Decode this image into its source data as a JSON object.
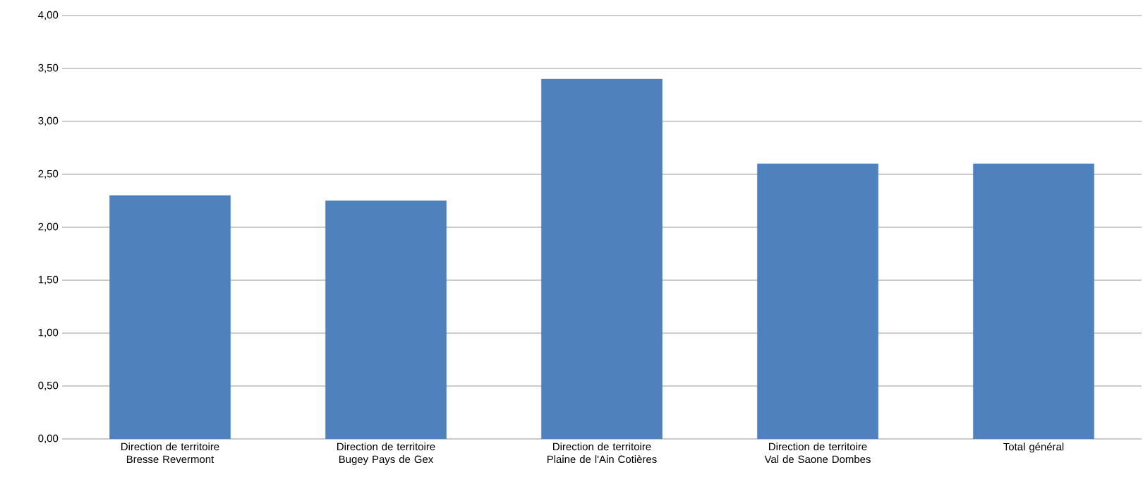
{
  "chart_data": {
    "type": "bar",
    "categories": [
      "Direction de territoire Bresse Revermont",
      "Direction de territoire Bugey Pays de Gex",
      "Direction de territoire Plaine de l'Ain Cotières",
      "Direction de territoire Val de Saone Dombes",
      "Total général"
    ],
    "values": [
      2.3,
      2.25,
      3.4,
      2.6,
      2.6
    ],
    "color": "#4f81bd",
    "ylim": [
      0,
      4
    ],
    "yticks": [
      {
        "value": 0,
        "label": "0,00"
      },
      {
        "value": 0.5,
        "label": "0,50"
      },
      {
        "value": 1,
        "label": "1,00"
      },
      {
        "value": 1.5,
        "label": "1,50"
      },
      {
        "value": 2,
        "label": "2,00"
      },
      {
        "value": 2.5,
        "label": "2,50"
      },
      {
        "value": 3,
        "label": "3,00"
      },
      {
        "value": 3.5,
        "label": "3,50"
      },
      {
        "value": 4,
        "label": "4,00"
      }
    ],
    "grid": "y"
  }
}
